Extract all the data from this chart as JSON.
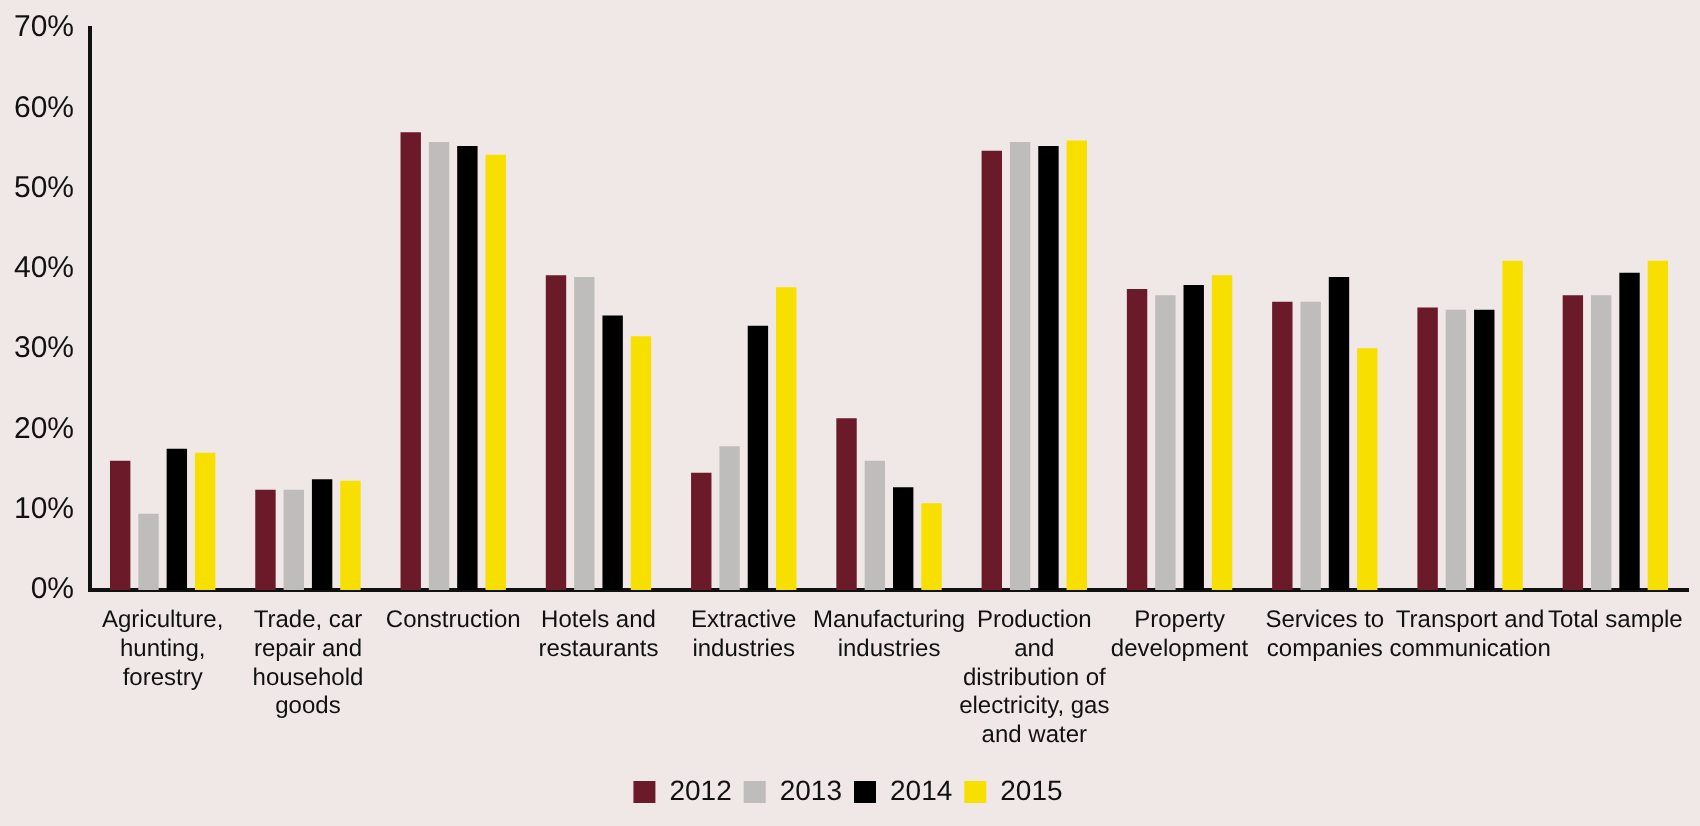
{
  "chart_data": {
    "type": "bar",
    "categories": [
      "Agriculture, hunting, forestry",
      "Trade, car repair and household goods",
      "Construction",
      "Hotels and restaurants",
      "Extractive industries",
      "Manufacturing industries",
      "Production and distribution of electricity, gas and water",
      "Property development",
      "Services to companies",
      "Transport and communication",
      "Total sample"
    ],
    "series": [
      {
        "name": "2012",
        "color": "#6a1a28",
        "values": [
          16.1,
          12.5,
          57.0,
          39.2,
          14.6,
          21.4,
          54.7,
          37.5,
          35.9,
          35.2,
          36.7
        ]
      },
      {
        "name": "2013",
        "color": "#bfbdbb",
        "values": [
          9.5,
          12.5,
          55.8,
          39.0,
          17.9,
          16.1,
          55.8,
          36.7,
          35.9,
          34.9,
          36.7
        ]
      },
      {
        "name": "2014",
        "color": "#000000",
        "values": [
          17.6,
          13.8,
          55.3,
          34.2,
          32.9,
          12.8,
          55.3,
          38.0,
          39.0,
          34.9,
          39.5
        ]
      },
      {
        "name": "2015",
        "color": "#f7df00",
        "values": [
          17.1,
          13.6,
          54.2,
          31.6,
          37.7,
          10.8,
          56.0,
          39.2,
          30.1,
          41.0,
          41.0
        ]
      }
    ],
    "ylim": [
      0,
      70
    ],
    "yticks": [
      {
        "value": 0,
        "label": "0%"
      },
      {
        "value": 10,
        "label": "10%"
      },
      {
        "value": 20,
        "label": "20%"
      },
      {
        "value": 30,
        "label": "30%"
      },
      {
        "value": 40,
        "label": "40%"
      },
      {
        "value": 50,
        "label": "50%"
      },
      {
        "value": 60,
        "label": "60%"
      },
      {
        "value": 70,
        "label": "70%"
      }
    ],
    "grid": false,
    "legend": "bottom"
  }
}
